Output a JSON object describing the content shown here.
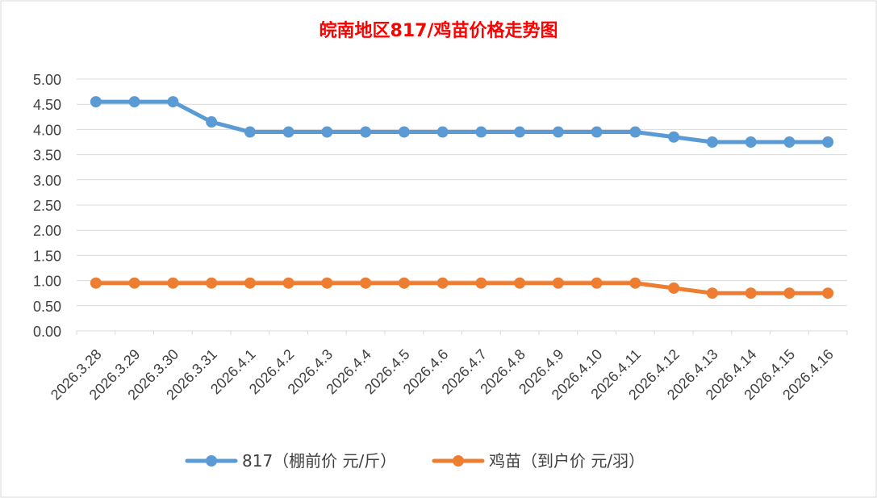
{
  "chart_data": {
    "type": "line",
    "title": "皖南地区817/鸡苗价格走势图",
    "xlabel": "",
    "ylabel": "",
    "categories": [
      "2026.3.28",
      "2026.3.29",
      "2026.3.30",
      "2026.3.31",
      "2026.4.1",
      "2026.4.2",
      "2026.4.3",
      "2026.4.4",
      "2026.4.5",
      "2026.4.6",
      "2026.4.7",
      "2026.4.8",
      "2026.4.9",
      "2026.4.10",
      "2026.4.11",
      "2026.4.12",
      "2026.4.13",
      "2026.4.14",
      "2026.4.15",
      "2026.4.16"
    ],
    "series": [
      {
        "name": "817（棚前价 元/斤）",
        "color": "#5B9BD5",
        "values": [
          4.55,
          4.55,
          4.55,
          4.15,
          3.95,
          3.95,
          3.95,
          3.95,
          3.95,
          3.95,
          3.95,
          3.95,
          3.95,
          3.95,
          3.95,
          3.85,
          3.75,
          3.75,
          3.75,
          3.75
        ]
      },
      {
        "name": "鸡苗（到户价 元/羽）",
        "color": "#ED7D31",
        "values": [
          0.95,
          0.95,
          0.95,
          0.95,
          0.95,
          0.95,
          0.95,
          0.95,
          0.95,
          0.95,
          0.95,
          0.95,
          0.95,
          0.95,
          0.95,
          0.85,
          0.75,
          0.75,
          0.75,
          0.75
        ]
      }
    ],
    "ylim": [
      0,
      5
    ],
    "yticks": [
      "0.00",
      "0.50",
      "1.00",
      "1.50",
      "2.00",
      "2.50",
      "3.00",
      "3.50",
      "4.00",
      "4.50",
      "5.00"
    ],
    "grid": true,
    "legend_position": "bottom",
    "title_color": "#FF0000"
  }
}
